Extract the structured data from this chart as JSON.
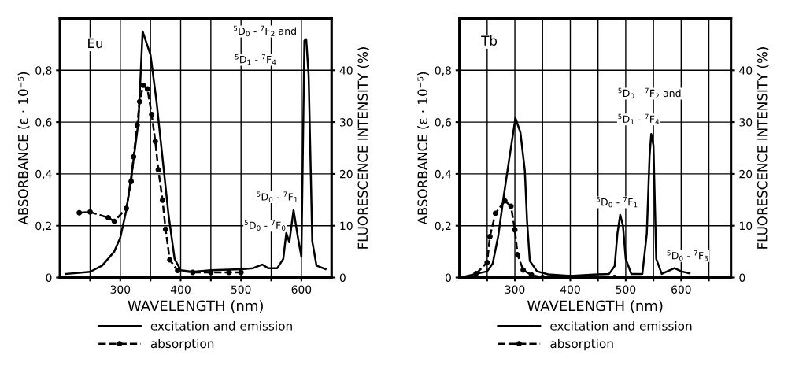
{
  "chart_data": [
    {
      "type": "line",
      "xlabel": "WAVELENGTH (nm)",
      "ylabel": "ABSORBANCE (ε · 10⁻⁵)",
      "y2label": "FLUORESCENCE INTENSITY (%)",
      "xlim": [
        200,
        650
      ],
      "xticks": [
        {
          "value": 250,
          "label": null
        },
        300,
        {
          "value": 350,
          "label": null
        },
        400,
        {
          "value": 450,
          "label": null
        },
        500,
        {
          "value": 550,
          "label": null
        },
        600
      ],
      "ylim": [
        0,
        1.0
      ],
      "yticks": [
        0,
        {
          "value": 0.2,
          "label": "0,2"
        },
        {
          "value": 0.4,
          "label": "0,4"
        },
        {
          "value": 0.6,
          "label": "0,6"
        },
        {
          "value": 0.8,
          "label": "0,8"
        }
      ],
      "y2lim": [
        0,
        50
      ],
      "y2ticks": [
        0,
        10,
        20,
        30,
        40
      ],
      "grid": true,
      "legend": "bottom",
      "series": [
        {
          "name": "excitation and emission",
          "color": "#000000",
          "axis": "y2",
          "line_style": "solid",
          "marker": "none",
          "x": [
            210,
            250,
            270,
            290,
            300,
            310,
            320,
            330,
            337,
            350,
            360,
            370,
            380,
            390,
            400,
            420,
            450,
            500,
            520,
            535,
            545,
            560,
            570,
            575,
            580,
            587,
            595,
            600,
            605,
            608,
            612,
            618,
            625,
            640
          ],
          "values": [
            0.7,
            1.1,
            2.3,
            5,
            7.7,
            13,
            21,
            30,
            47.5,
            43,
            34,
            23,
            12,
            3.6,
            1.4,
            1.1,
            1.4,
            1.6,
            1.8,
            2.5,
            1.8,
            1.8,
            3.6,
            8.6,
            6.8,
            13,
            7.2,
            4,
            45.7,
            46,
            39,
            7,
            2.3,
            1.6
          ]
        },
        {
          "name": "absorption",
          "color": "#000000",
          "line_style": "dashed",
          "marker": "circle",
          "x": [
            232,
            250,
            280,
            290,
            310,
            318,
            322,
            328,
            332,
            338,
            345,
            352,
            358,
            363,
            370,
            375,
            382,
            395,
            420,
            450,
            480,
            500
          ],
          "values": [
            0.25,
            0.253,
            0.231,
            0.217,
            0.267,
            0.371,
            0.466,
            0.588,
            0.679,
            0.742,
            0.728,
            0.629,
            0.525,
            0.416,
            0.299,
            0.186,
            0.068,
            0.027,
            0.02,
            0.02,
            0.02,
            0.02
          ]
        }
      ],
      "annotations": [
        "Eu",
        "$^{5}$D$_{0}$ - $^{7}$F$_{2}$ and",
        "$^{5}$D$_{1}$ - $^{7}$F$_{4}$",
        "$^{5}$D$_{0}$ - $^{7}$F$_{1}$",
        "$^{5}$D$_{0}$ - $^{7}$F$_{0}$"
      ]
    },
    {
      "type": "line",
      "xlabel": "WAVELENGTH (nm)",
      "ylabel": "ABSORBANCE (ε · 10⁻⁵)",
      "y2label": "FLUORESCENCE INTENSITY (%)",
      "xlim": [
        200,
        690
      ],
      "xticks": [
        {
          "value": 250,
          "label": null
        },
        300,
        {
          "value": 350,
          "label": null
        },
        400,
        {
          "value": 450,
          "label": null
        },
        500,
        {
          "value": 550,
          "label": null
        },
        600,
        {
          "value": 650,
          "label": null
        }
      ],
      "ylim": [
        0,
        1.0
      ],
      "yticks": [
        0,
        {
          "value": 0.2,
          "label": "0,2"
        },
        {
          "value": 0.4,
          "label": "0,4"
        },
        {
          "value": 0.6,
          "label": "0,6"
        },
        {
          "value": 0.8,
          "label": "0,8"
        }
      ],
      "y2lim": [
        0,
        50
      ],
      "y2ticks": [
        0,
        10,
        20,
        30,
        40
      ],
      "grid": true,
      "legend": "bottom",
      "series": [
        {
          "name": "excitation and emission",
          "color": "#000000",
          "axis": "y2",
          "line_style": "solid",
          "marker": "none",
          "x": [
            210,
            230,
            250,
            260,
            270,
            280,
            290,
            301,
            310,
            318,
            322,
            327,
            340,
            360,
            400,
            430,
            470,
            480,
            485,
            490,
            495,
            500,
            510,
            530,
            538,
            543,
            546,
            550,
            555,
            565,
            575,
            588,
            600,
            615
          ],
          "values": [
            0.2,
            0.7,
            1.2,
            2.7,
            8,
            15.8,
            23,
            30.8,
            28,
            20.6,
            10.9,
            3.2,
            1.2,
            0.6,
            0.3,
            0.5,
            0.7,
            2.2,
            8.5,
            12.1,
            10,
            3.6,
            0.7,
            0.7,
            8.5,
            23.5,
            27.7,
            25.5,
            3.6,
            0.7,
            1.2,
            1.8,
            1.2,
            0.8
          ]
        },
        {
          "name": "absorption",
          "color": "#000000",
          "line_style": "dashed",
          "marker": "circle",
          "x": [
            230,
            250,
            255,
            265,
            282,
            293,
            300,
            305,
            315,
            330,
            350,
            400,
            440,
            480
          ],
          "values": [
            0.015,
            0.058,
            0.158,
            0.248,
            0.296,
            0.275,
            0.184,
            0.087,
            0.029,
            0.01,
            0.0,
            0.0,
            0.0,
            0.0
          ]
        }
      ],
      "annotations": [
        "Tb",
        "$^{5}$D$_{0}$ - $^{7}$F$_{2}$ and",
        "$^{5}$D$_{1}$ - $^{7}$F$_{4}$",
        "$^{5}$D$_{0}$ - $^{7}$F$_{1}$",
        "$^{5}$D$_{0}$ - $^{7}$F$_{3}$"
      ]
    }
  ]
}
